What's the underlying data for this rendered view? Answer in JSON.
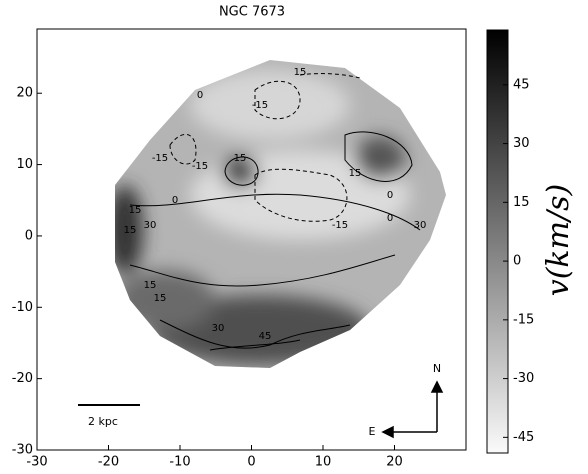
{
  "chart_data": {
    "type": "velocity-map",
    "title": "NGC 7673",
    "xlim": [
      -30,
      30
    ],
    "ylim": [
      -30,
      29
    ],
    "xticks": [
      -30,
      -20,
      -10,
      0,
      10,
      20
    ],
    "yticks": [
      -30,
      -20,
      -10,
      0,
      10,
      20
    ],
    "clim": [
      -49,
      59
    ],
    "cticks": [
      45,
      30,
      15,
      0,
      -15,
      -30,
      -45
    ],
    "colorbar_label": "v(km/s)",
    "contour_levels": [
      -15,
      0,
      15,
      30,
      45
    ],
    "scale_bar": "2 kpc",
    "north": "N",
    "east": "E"
  }
}
